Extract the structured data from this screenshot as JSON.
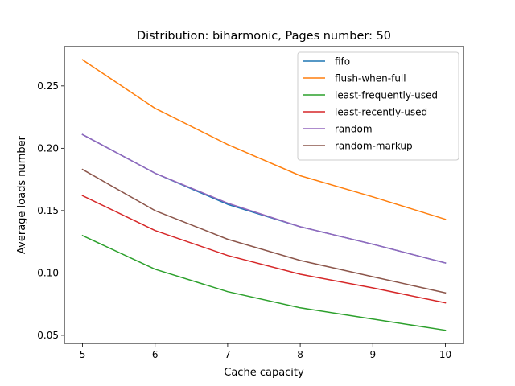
{
  "chart_data": {
    "type": "line",
    "title": "Distribution: biharmonic, Pages number: 50",
    "xlabel": "Cache capacity",
    "ylabel": "Average loads number",
    "xlim": [
      4.75,
      10.25
    ],
    "ylim": [
      0.0435,
      0.2815
    ],
    "xticks": [
      5,
      6,
      7,
      8,
      9,
      10
    ],
    "yticks": [
      0.05,
      0.1,
      0.15,
      0.2,
      0.25
    ],
    "ytick_labels": [
      "0.05",
      "0.10",
      "0.15",
      "0.20",
      "0.25"
    ],
    "grid": false,
    "legend_position": "top-right",
    "x": [
      5,
      6,
      7,
      8,
      9,
      10
    ],
    "series": [
      {
        "name": "fifo",
        "color": "#1f77b4",
        "values": [
          0.211,
          0.18,
          0.155,
          0.137,
          0.123,
          0.108
        ]
      },
      {
        "name": "flush-when-full",
        "color": "#ff7f0e",
        "values": [
          0.271,
          0.232,
          0.203,
          0.178,
          0.161,
          0.143
        ]
      },
      {
        "name": "least-frequently-used",
        "color": "#2ca02c",
        "values": [
          0.13,
          0.103,
          0.085,
          0.072,
          0.063,
          0.054
        ]
      },
      {
        "name": "least-recently-used",
        "color": "#d62728",
        "values": [
          0.162,
          0.134,
          0.114,
          0.099,
          0.088,
          0.076
        ]
      },
      {
        "name": "random",
        "color": "#9467bd",
        "values": [
          0.211,
          0.18,
          0.156,
          0.137,
          0.123,
          0.108
        ]
      },
      {
        "name": "random-markup",
        "color": "#8c564b",
        "values": [
          0.183,
          0.15,
          0.127,
          0.11,
          0.097,
          0.084
        ]
      }
    ]
  }
}
